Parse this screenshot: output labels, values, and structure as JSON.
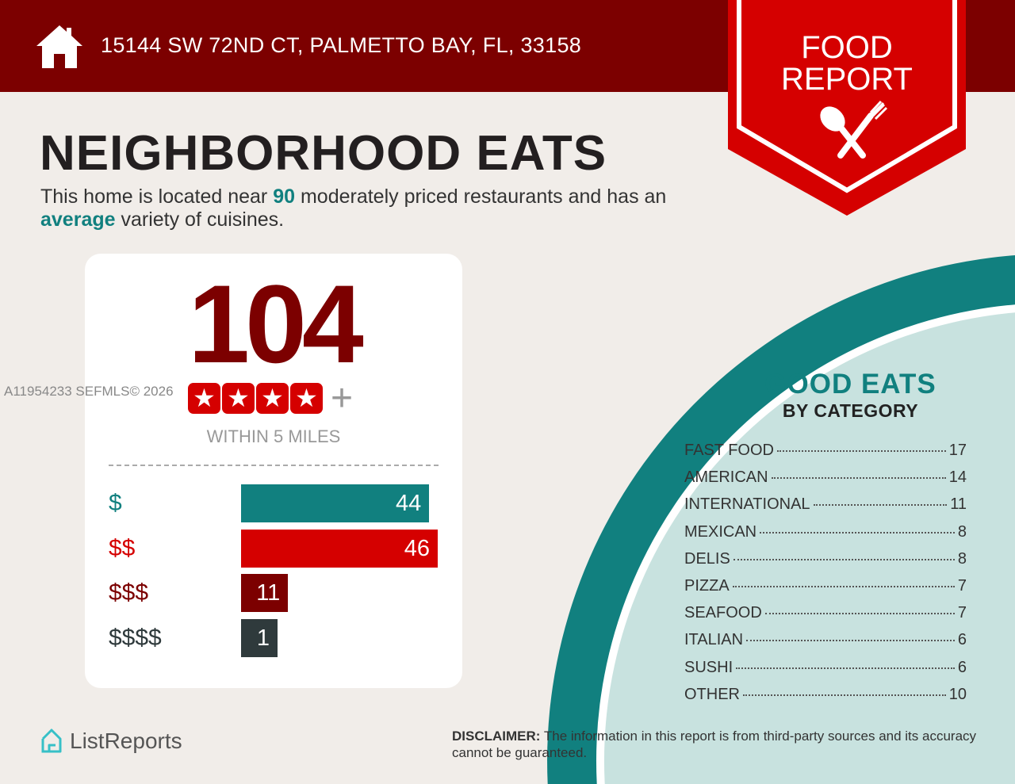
{
  "header": {
    "address": "15144 SW 72ND CT, PALMETTO BAY, FL, 33158",
    "icon": "house-icon"
  },
  "badge": {
    "line1": "FOOD",
    "line2": "REPORT",
    "icon": "spoon-fork-icon"
  },
  "title": "NEIGHBORHOOD EATS",
  "summary": {
    "pre": "This home is located near ",
    "count": "90",
    "mid": " moderately priced restaurants and has an ",
    "variety": "average",
    "post": " variety of cuisines."
  },
  "card": {
    "total": "104",
    "rating_stars": 4,
    "rating_suffix": "+",
    "within": "WITHIN 5 MILES"
  },
  "watermark": "A11954233  SEFMLS© 2026",
  "chart_data": {
    "type": "bar",
    "orientation": "horizontal",
    "categories": [
      "$",
      "$$",
      "$$$",
      "$$$$"
    ],
    "values": [
      44,
      46,
      11,
      1
    ],
    "colors": [
      "#11807f",
      "#d50000",
      "#7c0000",
      "#2f3a3c"
    ]
  },
  "good_eats": {
    "title": "GOOD EATS",
    "subtitle": "BY CATEGORY",
    "items": [
      {
        "name": "FAST FOOD",
        "count": "17"
      },
      {
        "name": "AMERICAN",
        "count": "14"
      },
      {
        "name": "INTERNATIONAL",
        "count": "11"
      },
      {
        "name": "MEXICAN",
        "count": "8"
      },
      {
        "name": "DELIS",
        "count": "8"
      },
      {
        "name": "PIZZA",
        "count": "7"
      },
      {
        "name": "SEAFOOD",
        "count": "7"
      },
      {
        "name": "ITALIAN",
        "count": "6"
      },
      {
        "name": "SUSHI",
        "count": "6"
      },
      {
        "name": "OTHER",
        "count": "10"
      }
    ]
  },
  "footer": {
    "logo": "ListReports",
    "disclaimer_label": "DISCLAIMER:",
    "disclaimer": " The information in this report is from third-party sources and its accuracy cannot be guaranteed."
  },
  "colors": {
    "maroon": "#7c0000",
    "red": "#d50000",
    "teal": "#11807f",
    "light_teal": "#c8e2df"
  }
}
